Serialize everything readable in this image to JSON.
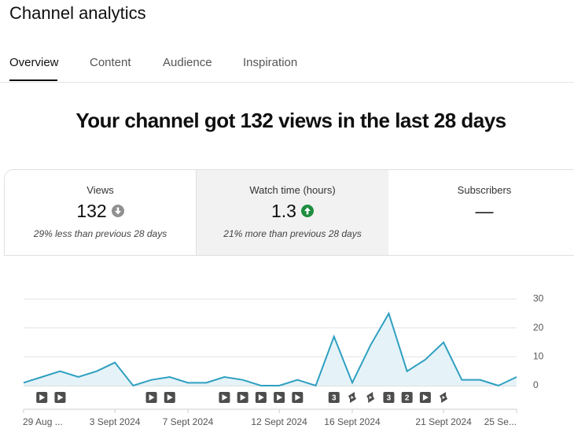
{
  "header": {
    "title": "Channel analytics"
  },
  "tabs": [
    "Overview",
    "Content",
    "Audience",
    "Inspiration"
  ],
  "headline": "Your channel got 132 views in the last 28 days",
  "cards": [
    {
      "label": "Views",
      "value": "132",
      "trend": "down",
      "note": "29% less than previous 28 days"
    },
    {
      "label": "Watch time (hours)",
      "value": "1.3",
      "trend": "up",
      "note": "21% more than previous 28 days"
    },
    {
      "label": "Subscribers",
      "value": "—"
    }
  ],
  "chart_data": {
    "type": "line",
    "categories": [
      "29 Aug ...",
      null,
      null,
      null,
      null,
      "3 Sept 2024",
      null,
      null,
      null,
      "7 Sept 2024",
      null,
      null,
      null,
      null,
      "12 Sept 2024",
      null,
      null,
      null,
      "16 Sept 2024",
      null,
      null,
      null,
      null,
      "21 Sept 2024",
      null,
      null,
      null,
      "25 Se..."
    ],
    "values": [
      1,
      3,
      5,
      3,
      5,
      8,
      0,
      2,
      3,
      1,
      1,
      3,
      2,
      0,
      0,
      2,
      0,
      17,
      1,
      14,
      25,
      5,
      9,
      15,
      2,
      2,
      0,
      3
    ],
    "color": "#2e9fc0",
    "fill": "#e5f3f8",
    "ylim": [
      0,
      30
    ],
    "yticks": [
      0,
      10,
      20,
      30
    ],
    "grid": true,
    "markers": [
      null,
      "play",
      "play",
      null,
      null,
      null,
      null,
      "play",
      "play",
      null,
      null,
      "play",
      "play",
      "play",
      "play",
      "play",
      null,
      "3",
      "shorts",
      "shorts",
      "3",
      "2",
      "play",
      "shorts",
      null,
      null,
      null,
      null
    ]
  }
}
